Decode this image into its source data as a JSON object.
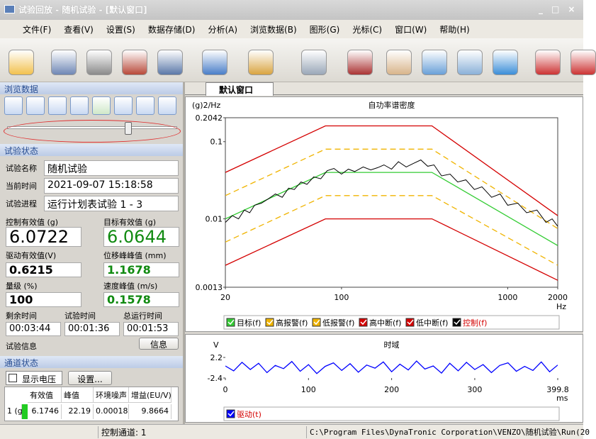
{
  "window_title": "试验回放 - 随机试验 - [默认窗口]",
  "menu": [
    "文件(F)",
    "查看(V)",
    "设置(S)",
    "数据存储(D)",
    "分析(A)",
    "浏览数据(B)",
    "图形(G)",
    "光标(C)",
    "窗口(W)",
    "帮助(H)"
  ],
  "browse_panel": {
    "title": "浏览数据"
  },
  "status_panel": {
    "title": "试验状态",
    "fields": [
      {
        "label": "试验名称",
        "value": "随机试验"
      },
      {
        "label": "当前时间",
        "value": "2021-09-07 15:18:58"
      },
      {
        "label": "试验进程",
        "value": "运行计划表试验 1 - 3"
      }
    ],
    "metrics": [
      {
        "label": "控制有效值 (g)",
        "value": "6.0722"
      },
      {
        "label": "目标有效值 (g)",
        "value": "6.0644"
      },
      {
        "label": "驱动有效值(V)",
        "value": "0.6215"
      },
      {
        "label": "位移峰峰值 (mm)",
        "value": "1.1678"
      },
      {
        "label": "量级 (%)",
        "value": "100"
      },
      {
        "label": "速度峰值 (m/s)",
        "value": "0.1578"
      }
    ],
    "timers": [
      {
        "label": "剩余时间",
        "value": "00:03:44"
      },
      {
        "label": "试验时间",
        "value": "00:01:36"
      },
      {
        "label": "总运行时间",
        "value": "00:01:53"
      }
    ],
    "info_label": "试验信息",
    "info_button": "信息"
  },
  "channel_panel": {
    "title": "通道状态",
    "checkbox": "显示电压",
    "button": "设置...",
    "table": {
      "header": [
        "有效值",
        "峰值",
        "环境噪声",
        "增益(EU/V)"
      ],
      "rows": [
        [
          "1 (g)",
          "6.1746",
          "22.19",
          "0.00018",
          "9.8664"
        ]
      ]
    }
  },
  "status_bar": [
    "控制通道: 1",
    "C:\\Program Files\\DynaTronic Corporation\\VENZO\\随机试验\\Run(20"
  ],
  "tab": "默认窗口",
  "psd_chart": {
    "type": "line",
    "title": "自功率谱密度",
    "y_label": "(g)2/Hz",
    "x_label": "Hz",
    "log_x": true,
    "log_y": true,
    "xlim": [
      20,
      2000
    ],
    "xticks": [
      20,
      100,
      1000,
      2000
    ],
    "ylim": [
      0.0013,
      0.2042
    ],
    "yticks": [
      0.0013,
      0.01,
      0.1,
      0.2042
    ],
    "series": [
      {
        "name": "目标(f)",
        "color": "#33cc33",
        "x": [
          20,
          80,
          350,
          2000
        ],
        "values": [
          0.01,
          0.04,
          0.04,
          0.0045
        ]
      },
      {
        "name": "高报警(f)",
        "color": "#f0b400",
        "dash": true,
        "x": [
          20,
          80,
          350,
          2000
        ],
        "values": [
          0.02,
          0.08,
          0.08,
          0.0075
        ]
      },
      {
        "name": "低报警(f)",
        "color": "#f0b400",
        "dash": true,
        "x": [
          20,
          80,
          350,
          2000
        ],
        "values": [
          0.005,
          0.02,
          0.02,
          0.0025
        ]
      },
      {
        "name": "高中断(f)",
        "color": "#d40000",
        "x": [
          20,
          80,
          350,
          2000
        ],
        "values": [
          0.04,
          0.16,
          0.16,
          0.011
        ]
      },
      {
        "name": "低中断(f)",
        "color": "#d40000",
        "x": [
          20,
          80,
          350,
          2000
        ],
        "values": [
          0.0025,
          0.01,
          0.01,
          0.0016
        ]
      },
      {
        "name": "控制(f)",
        "color": "#000000",
        "x": [
          20,
          22,
          24,
          26,
          28,
          30,
          33,
          36,
          40,
          44,
          48,
          52,
          57,
          62,
          68,
          75,
          82,
          90,
          100,
          110,
          120,
          135,
          150,
          165,
          180,
          200,
          220,
          245,
          270,
          300,
          330,
          360,
          400,
          450,
          500,
          560,
          630,
          700,
          800,
          900,
          1000,
          1150,
          1300,
          1500,
          1700,
          1850,
          2000
        ],
        "values": [
          0.009,
          0.011,
          0.01,
          0.013,
          0.012,
          0.015,
          0.016,
          0.018,
          0.021,
          0.019,
          0.025,
          0.024,
          0.03,
          0.028,
          0.035,
          0.033,
          0.042,
          0.045,
          0.038,
          0.044,
          0.041,
          0.047,
          0.043,
          0.046,
          0.05,
          0.044,
          0.055,
          0.047,
          0.052,
          0.058,
          0.048,
          0.05,
          0.036,
          0.038,
          0.03,
          0.032,
          0.024,
          0.026,
          0.019,
          0.021,
          0.015,
          0.016,
          0.012,
          0.013,
          0.009,
          0.01,
          0.008
        ]
      }
    ]
  },
  "time_chart": {
    "type": "line",
    "title": "时域",
    "y_label": "V",
    "x_label": "ms",
    "xlim": [
      0,
      399.8
    ],
    "xticks": [
      0,
      100,
      200,
      300,
      399.8
    ],
    "ylim": [
      -2.4,
      2.2
    ],
    "yticks": [
      -2.4,
      2.2
    ],
    "series": [
      {
        "name": "驱动(t)",
        "color": "#0000ff",
        "x": [
          0,
          10,
          20,
          30,
          40,
          50,
          60,
          70,
          80,
          90,
          100,
          110,
          120,
          130,
          140,
          150,
          160,
          170,
          180,
          190,
          200,
          210,
          220,
          230,
          240,
          250,
          260,
          270,
          280,
          290,
          300,
          310,
          320,
          330,
          340,
          350,
          360,
          370,
          380,
          390,
          399.8
        ],
        "values": [
          0.3,
          -0.8,
          1.1,
          -0.5,
          0.9,
          -1.2,
          0.4,
          -0.3,
          1.3,
          -0.9,
          0.6,
          -1.4,
          0.2,
          1.0,
          -0.7,
          0.8,
          -1.1,
          0.5,
          -0.2,
          1.2,
          -1.0,
          0.7,
          -0.6,
          1.4,
          -0.4,
          0.3,
          -1.3,
          0.9,
          -0.8,
          1.1,
          -0.5,
          0.6,
          -1.2,
          0.4,
          1.0,
          -0.9,
          0.2,
          -0.7,
          1.2,
          -1.0,
          0.5
        ]
      }
    ]
  }
}
